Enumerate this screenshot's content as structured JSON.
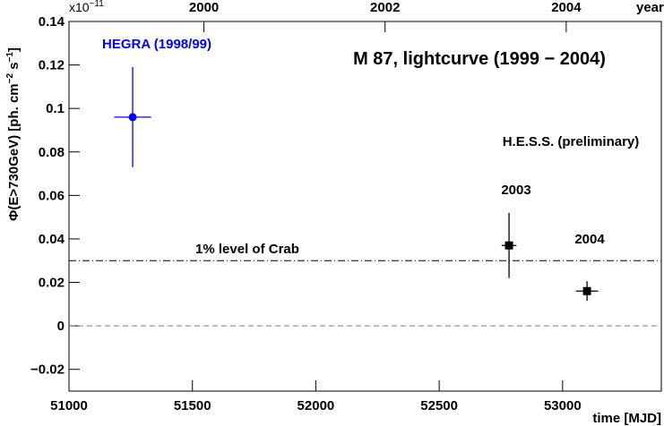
{
  "chart_data": {
    "type": "errorbar",
    "title": "M 87, lightcurve (1999 − 2004)",
    "xlabel": "time [MJD]",
    "x2label": "year",
    "ylabel_parts": [
      "Φ(E>730GeV) [ph. cm",
      "−2",
      " s",
      "−1",
      "]"
    ],
    "y_exponent": {
      "base": "x10",
      "power": "−11"
    },
    "xlim": [
      51000,
      53400
    ],
    "xticks": [
      51000,
      51500,
      52000,
      52500,
      53000
    ],
    "x2lim": [
      1998.51,
      2005.05
    ],
    "x2ticks": [
      2000,
      2002,
      2004
    ],
    "ylim": [
      -0.03,
      0.14
    ],
    "yticks": [
      {
        "value": -0.02,
        "label": "−0.02"
      },
      0,
      0.02,
      0.04,
      0.06,
      0.08,
      0.1,
      0.12,
      0.14
    ],
    "series": [
      {
        "name": "HEGRA (1998/99)",
        "color": "#0000ff",
        "marker": "circle",
        "x": [
          51258
        ],
        "xerr": [
          75
        ],
        "values": [
          0.096
        ],
        "yerr": [
          0.023
        ]
      },
      {
        "name": "H.E.S.S. (preliminary)",
        "color": "#000000",
        "marker": "square",
        "x": [
          52783,
          53099
        ],
        "xerr": [
          30,
          45
        ],
        "values": [
          0.037,
          0.016
        ],
        "yerr": [
          0.015,
          0.0045
        ],
        "point_labels": [
          "2003",
          "2004"
        ]
      }
    ],
    "hlines": [
      {
        "value": 0.03,
        "style": "dashdot",
        "color": "#000000",
        "label": "1% level of Crab"
      },
      {
        "value": 0,
        "style": "dashed",
        "color": "#808080"
      }
    ]
  }
}
